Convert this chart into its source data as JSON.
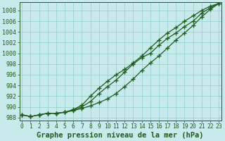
{
  "title": "Graphe pression niveau de la mer (hPa)",
  "x_labels": [
    0,
    1,
    2,
    3,
    4,
    5,
    6,
    7,
    8,
    9,
    10,
    11,
    12,
    13,
    14,
    15,
    16,
    17,
    18,
    19,
    20,
    21,
    22,
    23
  ],
  "line1": [
    988.5,
    988.2,
    988.5,
    988.8,
    988.8,
    989.0,
    989.3,
    989.7,
    990.2,
    990.8,
    991.5,
    992.5,
    993.8,
    995.2,
    996.8,
    998.2,
    999.5,
    1001.0,
    1002.5,
    1003.8,
    1005.2,
    1006.8,
    1008.2,
    1009.3
  ],
  "line2": [
    988.5,
    988.2,
    988.5,
    988.8,
    988.8,
    989.0,
    989.4,
    990.0,
    991.0,
    992.5,
    993.8,
    995.0,
    996.5,
    998.0,
    999.2,
    1000.0,
    1001.5,
    1002.8,
    1003.8,
    1005.0,
    1006.0,
    1007.5,
    1008.5,
    1009.3
  ],
  "line3": [
    988.5,
    988.2,
    988.5,
    988.8,
    988.8,
    989.0,
    989.5,
    990.3,
    992.0,
    993.5,
    994.8,
    996.0,
    997.0,
    998.2,
    999.5,
    1001.0,
    1002.5,
    1003.8,
    1004.8,
    1006.0,
    1007.0,
    1008.0,
    1008.8,
    1009.3
  ],
  "line_color": "#1f5c1f",
  "bg_color": "#c8eaea",
  "grid_color": "#8ecece",
  "axis_color": "#1f5c1f",
  "ylim_min": 987.5,
  "ylim_max": 1009.5,
  "yticks": [
    988,
    990,
    992,
    994,
    996,
    998,
    1000,
    1002,
    1004,
    1006,
    1008
  ],
  "title_fontsize": 7.5,
  "tick_fontsize": 6.0,
  "xtick_fontsize": 5.8
}
